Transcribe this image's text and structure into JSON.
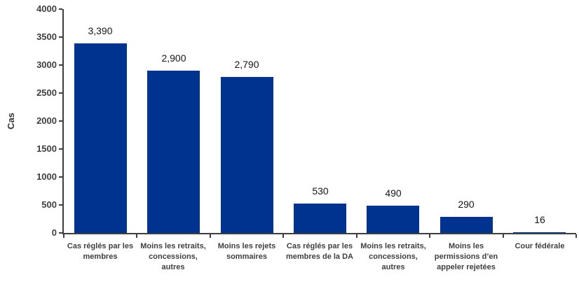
{
  "chart_data": {
    "type": "bar",
    "title": "",
    "ylabel": "Cas",
    "xlabel": "",
    "categories": [
      "Cas réglés par les membres",
      "Moins les retraits, concessions, autres",
      "Moins les rejets sommaires",
      "Cas réglés par les membres de la DA",
      "Moins les retraits, concessions, autres",
      "Moins les permissions d’en appeler rejetées",
      "Cour fédérale"
    ],
    "category_lines": [
      [
        "Cas réglés par les",
        "membres"
      ],
      [
        "Moins les retraits,",
        "concessions,",
        "autres"
      ],
      [
        "Moins les rejets",
        "sommaires"
      ],
      [
        "Cas réglés par les",
        "membres de la DA"
      ],
      [
        "Moins les retraits,",
        "concessions,",
        "autres"
      ],
      [
        "Moins les",
        "permissions d’en",
        "appeler rejetées"
      ],
      [
        "Cour fédérale"
      ]
    ],
    "values": [
      3390,
      2900,
      2790,
      530,
      490,
      290,
      16
    ],
    "value_labels": [
      "3,390",
      "2,900",
      "2,790",
      "530",
      "490",
      "290",
      "16"
    ],
    "ylim": [
      0,
      4000
    ],
    "ytick_step": 500,
    "yticks": [
      "0",
      "500",
      "1000",
      "1500",
      "2000",
      "2500",
      "3000",
      "3500",
      "4000"
    ],
    "grid": false,
    "legend": "none",
    "bar_color": "#00338F",
    "axis_color": "#3f3f3f",
    "tick_label_color": "#3f3f3f",
    "value_label_color": "#151515"
  }
}
